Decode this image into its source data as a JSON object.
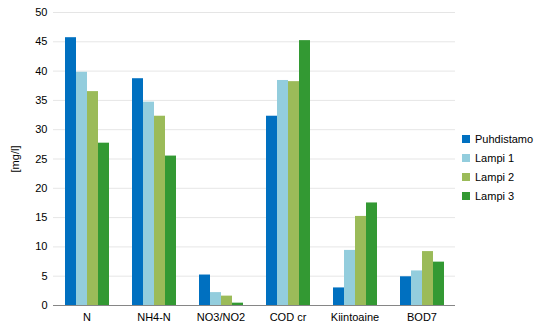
{
  "chart_data": {
    "type": "bar",
    "y_label": "[mg/l]",
    "categories": [
      "N",
      "NH4-N",
      "NO3/NO2",
      "COD cr",
      "Kiintoaine",
      "BOD7"
    ],
    "series": [
      {
        "name": "Puhdistamo",
        "color": "#0070C0",
        "values": [
          45.7,
          38.7,
          5.2,
          32.3,
          3.0,
          4.9
        ]
      },
      {
        "name": "Lampi 1",
        "color": "#93CDDD",
        "values": [
          39.8,
          34.7,
          2.2,
          38.4,
          9.4,
          5.9
        ]
      },
      {
        "name": "Lampi 2",
        "color": "#9BBB59",
        "values": [
          36.5,
          32.3,
          1.6,
          38.2,
          15.2,
          9.2
        ]
      },
      {
        "name": "Lampi 3",
        "color": "#339933",
        "values": [
          27.7,
          25.5,
          0.4,
          45.2,
          17.5,
          7.4
        ]
      }
    ],
    "ylim": [
      0,
      50
    ],
    "yticks": [
      0,
      5,
      10,
      15,
      20,
      25,
      30,
      35,
      40,
      45,
      50
    ],
    "grid": true,
    "legend": "right"
  }
}
